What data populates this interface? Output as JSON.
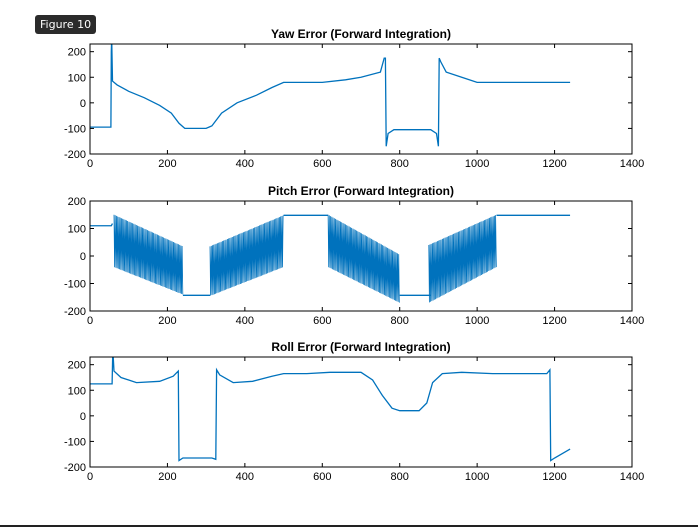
{
  "window": {
    "figure_label": "Figure 10"
  },
  "colors": {
    "line": "#0072BD",
    "axis": "#000000",
    "background": "#ffffff"
  },
  "chart_data": [
    {
      "type": "line",
      "title": "Yaw Error (Forward Integration)",
      "xlim": [
        0,
        1400
      ],
      "ylim": [
        -200,
        230
      ],
      "xticks": [
        0,
        200,
        400,
        600,
        800,
        1000,
        1200,
        1400
      ],
      "yticks": [
        -200,
        -100,
        0,
        100,
        200
      ],
      "series": [
        {
          "oscillating": false,
          "points": [
            [
              0,
              -95
            ],
            [
              54,
              -95
            ],
            [
              55,
              200
            ],
            [
              56,
              250
            ],
            [
              58,
              85
            ],
            [
              70,
              70
            ],
            [
              100,
              45
            ],
            [
              140,
              20
            ],
            [
              180,
              -10
            ],
            [
              210,
              -40
            ],
            [
              230,
              -80
            ],
            [
              245,
              -100
            ],
            [
              300,
              -100
            ],
            [
              315,
              -90
            ],
            [
              340,
              -40
            ],
            [
              380,
              0
            ],
            [
              430,
              30
            ],
            [
              470,
              60
            ],
            [
              500,
              80
            ],
            [
              600,
              80
            ],
            [
              660,
              90
            ],
            [
              700,
              100
            ],
            [
              750,
              120
            ],
            [
              760,
              175
            ],
            [
              763,
              175
            ],
            [
              765,
              -170
            ],
            [
              770,
              -120
            ],
            [
              785,
              -105
            ],
            [
              880,
              -105
            ],
            [
              895,
              -120
            ],
            [
              900,
              -170
            ],
            [
              902,
              175
            ],
            [
              906,
              160
            ],
            [
              920,
              120
            ],
            [
              960,
              100
            ],
            [
              1000,
              80
            ],
            [
              1240,
              80
            ]
          ]
        }
      ]
    },
    {
      "type": "line",
      "title": "Pitch Error (Forward Integration)",
      "xlim": [
        0,
        1400
      ],
      "ylim": [
        -200,
        200
      ],
      "xticks": [
        0,
        200,
        400,
        600,
        800,
        1000,
        1200,
        1400
      ],
      "yticks": [
        -200,
        -100,
        0,
        100,
        200
      ],
      "series": [
        {
          "oscillating": true,
          "smooth_points": [
            [
              0,
              110
            ],
            [
              55,
              110
            ],
            [
              58,
              118
            ],
            [
              500,
              148
            ],
            [
              615,
              148
            ],
            [
              800,
              -143
            ],
            [
              880,
              -143
            ],
            [
              1050,
              148
            ],
            [
              1240,
              148
            ]
          ],
          "bands": [
            {
              "x": [
                62,
                240
              ],
              "upper": [
                150,
                35
              ],
              "lower": [
                -40,
                -140
              ]
            },
            {
              "x": [
                310,
                500
              ],
              "upper": [
                35,
                148
              ],
              "lower": [
                -145,
                -40
              ]
            },
            {
              "x": [
                615,
                800
              ],
              "upper": [
                150,
                5
              ],
              "lower": [
                -40,
                -170
              ]
            },
            {
              "x": [
                875,
                1050
              ],
              "upper": [
                40,
                150
              ],
              "lower": [
                -170,
                -40
              ]
            }
          ]
        }
      ]
    },
    {
      "type": "line",
      "title": "Roll Error (Forward Integration)",
      "xlim": [
        0,
        1400
      ],
      "ylim": [
        -200,
        230
      ],
      "xticks": [
        0,
        200,
        400,
        600,
        800,
        1000,
        1200,
        1400
      ],
      "yticks": [
        -200,
        -100,
        0,
        100,
        200
      ],
      "series": [
        {
          "oscillating": false,
          "points": [
            [
              0,
              125
            ],
            [
              57,
              125
            ],
            [
              58,
              200
            ],
            [
              59,
              260
            ],
            [
              62,
              175
            ],
            [
              80,
              150
            ],
            [
              120,
              130
            ],
            [
              180,
              135
            ],
            [
              215,
              155
            ],
            [
              228,
              175
            ],
            [
              230,
              -175
            ],
            [
              240,
              -165
            ],
            [
              315,
              -165
            ],
            [
              325,
              -170
            ],
            [
              327,
              180
            ],
            [
              335,
              160
            ],
            [
              370,
              130
            ],
            [
              420,
              135
            ],
            [
              470,
              155
            ],
            [
              500,
              165
            ],
            [
              560,
              165
            ],
            [
              620,
              170
            ],
            [
              700,
              170
            ],
            [
              730,
              140
            ],
            [
              755,
              80
            ],
            [
              780,
              30
            ],
            [
              800,
              20
            ],
            [
              850,
              20
            ],
            [
              870,
              50
            ],
            [
              885,
              130
            ],
            [
              910,
              165
            ],
            [
              960,
              170
            ],
            [
              1040,
              165
            ],
            [
              1180,
              165
            ],
            [
              1188,
              180
            ],
            [
              1190,
              -175
            ],
            [
              1200,
              -165
            ],
            [
              1240,
              -130
            ]
          ]
        }
      ]
    }
  ]
}
